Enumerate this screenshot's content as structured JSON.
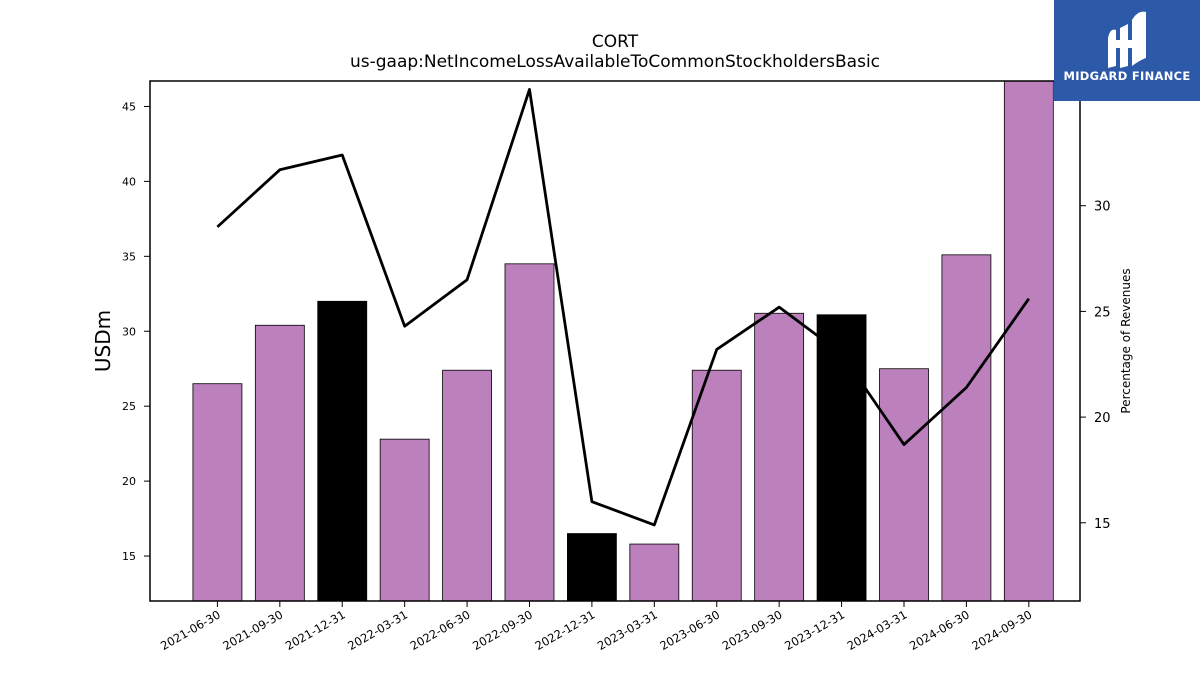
{
  "chart_data": {
    "type": "bar",
    "title": "CORT",
    "subtitle": "us-gaap:NetIncomeLossAvailableToCommonStockholdersBasic",
    "ylabel": "USDm",
    "y2label": "Percentage of Revenues",
    "categories": [
      "2021-06-30",
      "2021-09-30",
      "2021-12-31",
      "2022-03-31",
      "2022-06-30",
      "2022-09-30",
      "2022-12-31",
      "2023-03-31",
      "2023-06-30",
      "2023-09-30",
      "2023-12-31",
      "2024-03-31",
      "2024-06-30",
      "2024-09-30"
    ],
    "series": [
      {
        "type": "bar",
        "values": [
          26.5,
          30.4,
          32.0,
          22.8,
          27.4,
          34.5,
          16.5,
          15.8,
          27.4,
          31.2,
          31.1,
          27.5,
          35.1,
          46.7
        ],
        "colors": [
          "#bc80bd",
          "#bc80bd",
          "#000000",
          "#bc80bd",
          "#bc80bd",
          "#bc80bd",
          "#000000",
          "#bc80bd",
          "#bc80bd",
          "#bc80bd",
          "#000000",
          "#bc80bd",
          "#bc80bd",
          "#bc80bd"
        ]
      },
      {
        "type": "line",
        "axis": "right",
        "color": "#000000",
        "values": [
          29.0,
          31.7,
          32.4,
          24.3,
          26.5,
          35.5,
          16.0,
          14.9,
          23.2,
          25.2,
          23.0,
          18.7,
          21.4,
          25.6
        ]
      }
    ],
    "ylim": [
      12,
      46.7
    ],
    "yticks": [
      15,
      20,
      25,
      30,
      35,
      40,
      45
    ],
    "y2lim": [
      11.3,
      35.9
    ],
    "y2ticks": [
      15,
      20,
      25,
      30
    ]
  },
  "logo": {
    "text": "MIDGARD FINANCE"
  }
}
